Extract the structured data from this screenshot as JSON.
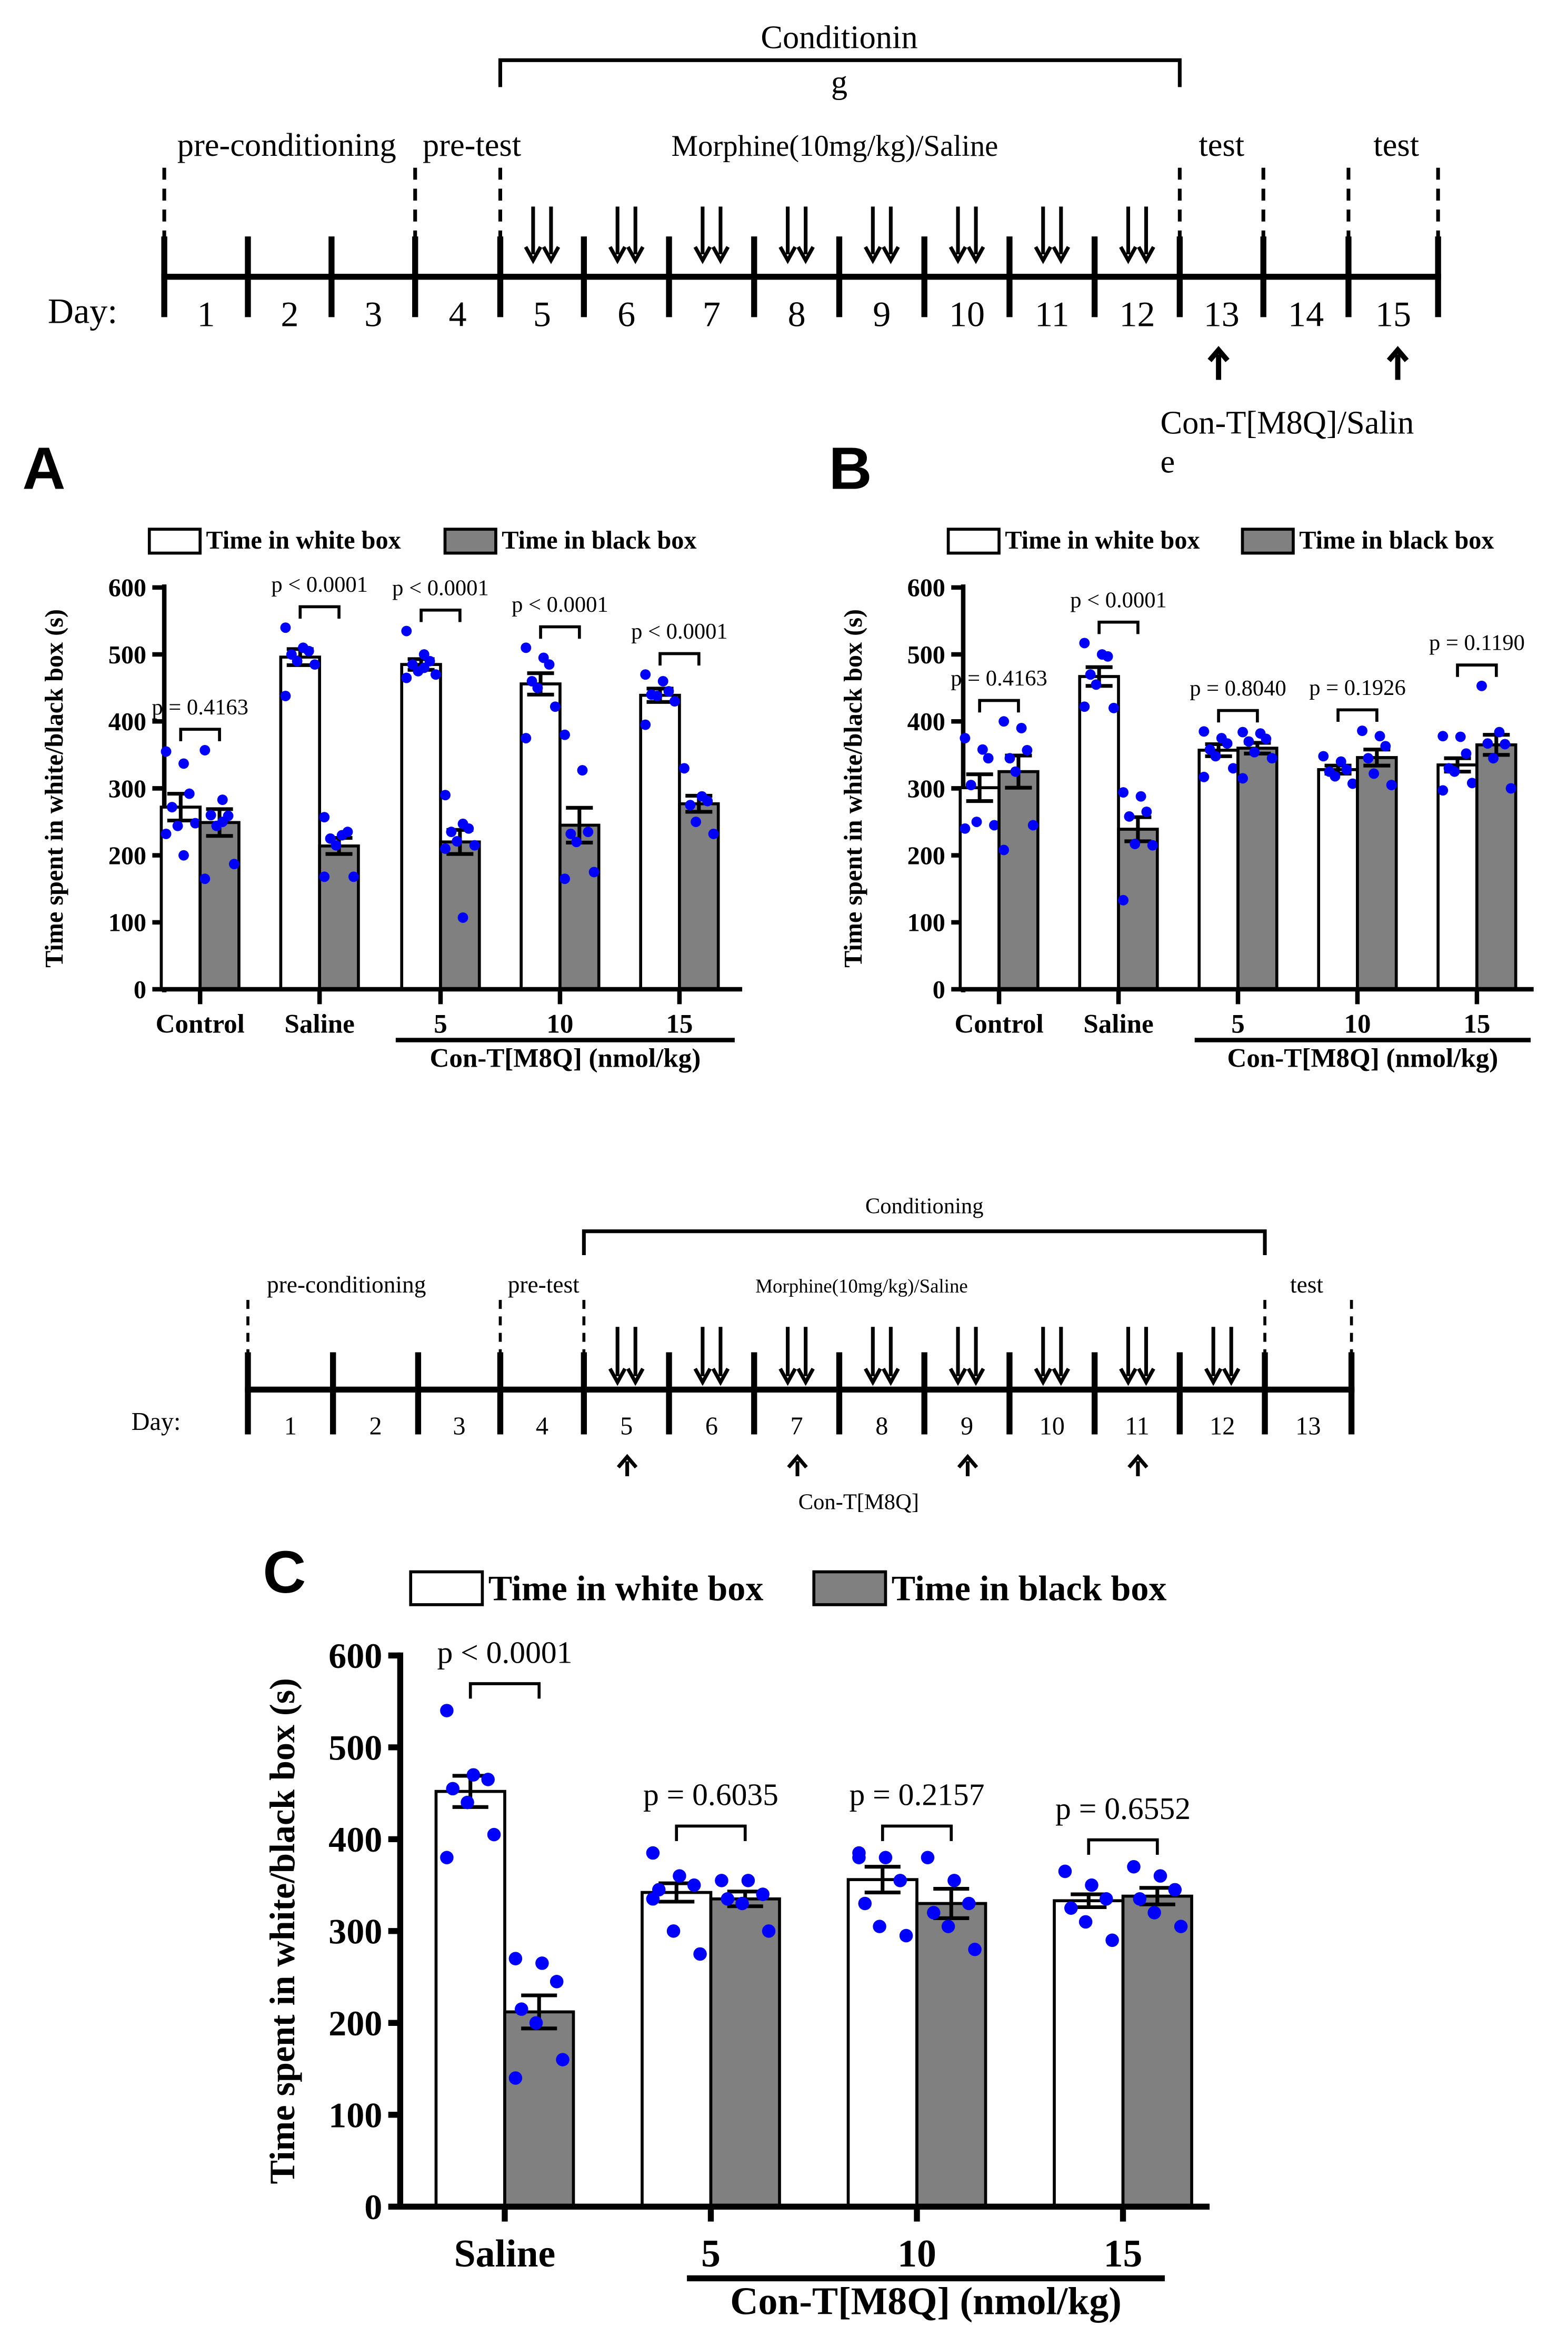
{
  "timeline1": {
    "bracket_label_line1": "Conditionin",
    "bracket_label_line2": "g",
    "phase_labels": [
      "pre-conditioning",
      "pre-test",
      "Morphine(10mg/kg)/Saline",
      "test",
      "test"
    ],
    "day_label": "Day:",
    "days": [
      "1",
      "2",
      "3",
      "4",
      "5",
      "6",
      "7",
      "8",
      "9",
      "10",
      "11",
      "12",
      "13",
      "14",
      "15"
    ],
    "treatment_line1": "Con-T[M8Q]/Salin",
    "treatment_line2": "e"
  },
  "timeline2": {
    "bracket_label": "Conditioning",
    "phase_labels": [
      "pre-conditioning",
      "pre-test",
      "Morphine(10mg/kg)/Saline",
      "test"
    ],
    "day_label": "Day:",
    "days": [
      "1",
      "2",
      "3",
      "4",
      "5",
      "6",
      "7",
      "8",
      "9",
      "10",
      "11",
      "12",
      "13"
    ],
    "treatment": "Con-T[M8Q]"
  },
  "colors": {
    "white_bar": "#ffffff",
    "black_bar": "#808080",
    "points": "#0000ff",
    "axis": "#000000"
  },
  "chart_data": [
    {
      "panel": "A",
      "type": "bar",
      "legend": [
        "Time in white box",
        "Time in black box"
      ],
      "legend_placement": "top",
      "ylabel": "Time spent in white/black box (s)",
      "ylim": [
        0,
        600
      ],
      "yticks": [
        "0",
        "100",
        "200",
        "300",
        "400",
        "500",
        "600"
      ],
      "categories": [
        "Control",
        "Saline",
        "5",
        "10",
        "15"
      ],
      "group_label": "Con-T[M8Q] (nmol/kg)",
      "p_values": [
        "p = 0.4163",
        "p < 0.0001",
        "p < 0.0001",
        "p < 0.0001",
        "p < 0.0001"
      ],
      "series": [
        {
          "name": "Time in white box",
          "values": [
            272,
            496,
            485,
            456,
            439
          ],
          "sem": [
            20,
            12,
            8,
            16,
            10
          ],
          "points": [
            [
              355,
              337,
              292,
              272,
              244,
              248,
              232,
              200
            ],
            [
              540,
              510,
              505,
              500,
              490,
              485,
              438
            ],
            [
              535,
              500,
              490,
              485,
              475,
              470,
              465,
              480
            ],
            [
              510,
              495,
              485,
              460,
              450,
              422,
              375
            ],
            [
              470,
              460,
              445,
              440,
              438,
              430,
              395
            ]
          ]
        },
        {
          "name": "Time in black box",
          "values": [
            249,
            214,
            220,
            245,
            277
          ],
          "sem": [
            20,
            12,
            18,
            26,
            12
          ],
          "points": [
            [
              357,
              283,
              259,
              260,
              244,
              187,
              165,
              250
            ],
            [
              257,
              230,
              235,
              225,
              215,
              168,
              168
            ],
            [
              290,
              247,
              240,
              235,
              221,
              215,
              210,
              107
            ],
            [
              380,
              327,
              235,
              232,
              220,
              175,
              165
            ],
            [
              330,
              288,
              281,
              275,
              250,
              232
            ]
          ]
        }
      ]
    },
    {
      "panel": "B",
      "type": "bar",
      "legend": [
        "Time in white box",
        "Time in black box"
      ],
      "legend_placement": "top",
      "ylabel": "Time spent in white/black box (s)",
      "ylim": [
        0,
        600
      ],
      "yticks": [
        "0",
        "100",
        "200",
        "300",
        "400",
        "500",
        "600"
      ],
      "categories": [
        "Control",
        "Saline",
        "5",
        "10",
        "15"
      ],
      "group_label": "Con-T[M8Q] (nmol/kg)",
      "p_values": [
        "p = 0.4163",
        "p < 0.0001",
        "p = 0.8040",
        "p = 0.1926",
        "p = 0.1190"
      ],
      "series": [
        {
          "name": "Time in white box",
          "values": [
            301,
            467,
            357,
            328,
            335
          ],
          "sem": [
            20,
            14,
            9,
            6,
            10
          ],
          "points": [
            [
              375,
              358,
              345,
              305,
              250,
              245,
              240
            ],
            [
              517,
              500,
              497,
              470,
              455,
              420,
              422
            ],
            [
              385,
              375,
              367,
              358,
              348,
              330,
              317
            ],
            [
              348,
              340,
              328,
              325,
              318,
              307
            ],
            [
              378,
              377,
              352,
              330,
              325,
              308,
              297
            ]
          ]
        },
        {
          "name": "Time in black box",
          "values": [
            325,
            239,
            360,
            346,
            365
          ],
          "sem": [
            24,
            18,
            8,
            12,
            15
          ],
          "points": [
            [
              400,
              390,
              357,
              345,
              325,
              245,
              208
            ],
            [
              294,
              288,
              265,
              258,
              217,
              215,
              133
            ],
            [
              384,
              382,
              374,
              370,
              354,
              345,
              315
            ],
            [
              386,
              378,
              363,
              345,
              322,
              305
            ],
            [
              453,
              384,
              366,
              367,
              345,
              300
            ]
          ]
        }
      ]
    },
    {
      "panel": "C",
      "type": "bar",
      "legend": [
        "Time in white box",
        "Time in black box"
      ],
      "legend_placement": "top",
      "ylabel": "Time spent in white/black box (s)",
      "ylim": [
        0,
        600
      ],
      "yticks": [
        "0",
        "100",
        "200",
        "300",
        "400",
        "500",
        "600"
      ],
      "categories": [
        "Saline",
        "5",
        "10",
        "15"
      ],
      "group_label": "Con-T[M8Q] (nmol/kg)",
      "p_values": [
        "p < 0.0001",
        "p = 0.6035",
        "p = 0.2157",
        "p = 0.6552"
      ],
      "series": [
        {
          "name": "Time in white box",
          "values": [
            452,
            342,
            356,
            333
          ],
          "sem": [
            17,
            10,
            14,
            7
          ],
          "points": [
            [
              540,
              470,
              465,
              455,
              440,
              405,
              380
            ],
            [
              385,
              360,
              350,
              345,
              300,
              275,
              335
            ],
            [
              385,
              380,
              355,
              330,
              305,
              295,
              380
            ],
            [
              365,
              350,
              335,
              325,
              310,
              290
            ]
          ]
        },
        {
          "name": "Time in black box",
          "values": [
            212,
            335,
            330,
            338
          ],
          "sem": [
            18,
            8,
            16,
            9
          ],
          "points": [
            [
              270,
              265,
              245,
              215,
              200,
              160,
              140
            ],
            [
              355,
              355,
              340,
              335,
              330,
              300
            ],
            [
              380,
              355,
              330,
              320,
              305,
              280
            ],
            [
              370,
              360,
              345,
              335,
              320,
              305
            ]
          ]
        }
      ]
    }
  ]
}
